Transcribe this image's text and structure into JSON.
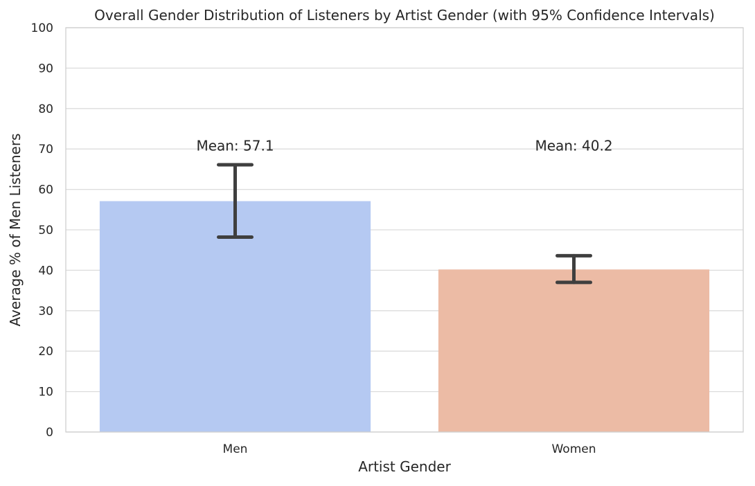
{
  "chart_data": {
    "type": "bar",
    "title": "Overall Gender Distribution of Listeners by Artist Gender (with 95% Confidence Intervals)",
    "xlabel": "Artist Gender",
    "ylabel": "Average % of Men Listeners",
    "categories": [
      "Men",
      "Women"
    ],
    "values": [
      57.1,
      40.2
    ],
    "ci_lower": [
      48.2,
      37.0
    ],
    "ci_upper": [
      66.1,
      43.6
    ],
    "annotations": [
      "Mean: 57.1",
      "Mean: 40.2"
    ],
    "annotation_y": [
      71,
      71
    ],
    "colors": [
      "#b5c9f2",
      "#ecbba5"
    ],
    "error_color": "#3f3f3f",
    "ylim": [
      0,
      100
    ],
    "yticks": [
      "0",
      "10",
      "20",
      "30",
      "40",
      "50",
      "60",
      "70",
      "80",
      "90",
      "100"
    ],
    "grid": true
  }
}
